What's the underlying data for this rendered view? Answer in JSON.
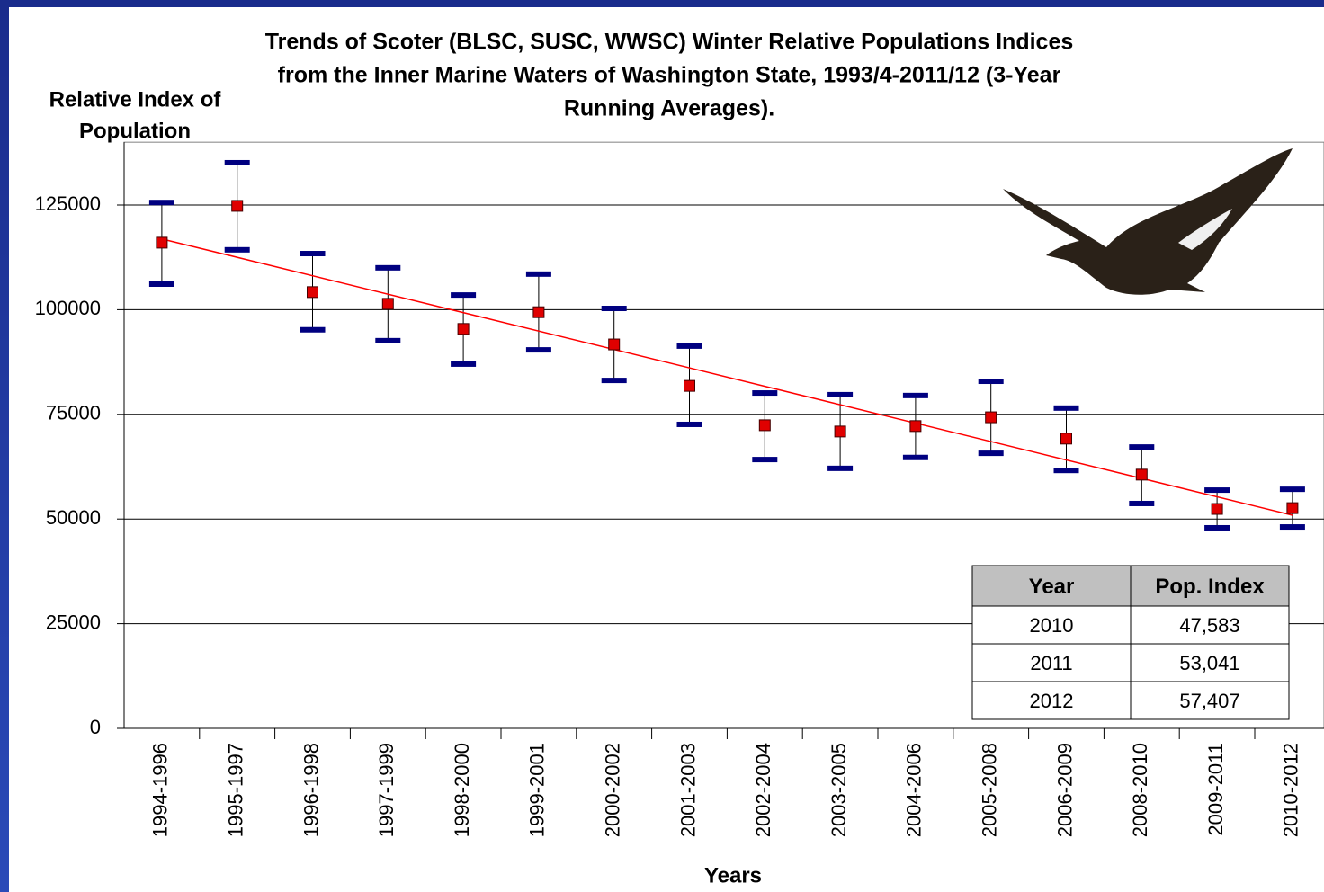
{
  "chart_data": {
    "type": "errorbar",
    "title": [
      "Trends of Scoter (BLSC, SUSC, WWSC) Winter Relative Populations Indices",
      "from the Inner Marine Waters of Washington State, 1993/4-2011/12 (3-Year",
      "Running Averages)."
    ],
    "ylabel": [
      "Relative Index of",
      "Population"
    ],
    "xlabel": "Years",
    "categories": [
      "1994-1996",
      "1995-1997",
      "1996-1998",
      "1997-1999",
      "1998-2000",
      "1999-2001",
      "2000-2002",
      "2001-2003",
      "2002-2004",
      "2003-2005",
      "2004-2006",
      "2005-2008",
      "2006-2009",
      "2008-2010",
      "2009-2011",
      "2010-2012"
    ],
    "series": [
      {
        "color": "#e00000",
        "cap_color": "#000080",
        "values": [
          116000,
          124800,
          104200,
          101400,
          95400,
          99400,
          91700,
          81800,
          72400,
          70900,
          72200,
          74300,
          69200,
          60600,
          52400,
          52600
        ],
        "upper": [
          125600,
          135100,
          113400,
          110000,
          103500,
          108500,
          100300,
          91300,
          80100,
          79700,
          79500,
          82900,
          76500,
          67200,
          56900,
          57100
        ],
        "lower": [
          106100,
          114300,
          95200,
          92600,
          87000,
          90400,
          83100,
          72600,
          64200,
          62100,
          64700,
          65700,
          61600,
          53700,
          47900,
          48100
        ]
      }
    ],
    "trend": {
      "color": "#ff0000",
      "values": [
        116900,
        50900
      ]
    },
    "ylim": [
      0,
      140000
    ],
    "yticks": [
      0,
      25000,
      50000,
      75000,
      100000,
      125000
    ],
    "grid": true,
    "table": {
      "header": [
        "Year",
        "Pop. Index"
      ],
      "rows": [
        [
          "2010",
          "47,583"
        ],
        [
          "2011",
          "53,041"
        ],
        [
          "2012",
          "57,407"
        ]
      ]
    }
  }
}
